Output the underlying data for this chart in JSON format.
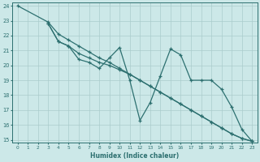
{
  "xlabel": "Humidex (Indice chaleur)",
  "xlim": [
    -0.5,
    23.5
  ],
  "ylim": [
    14.8,
    24.2
  ],
  "xticks": [
    0,
    1,
    2,
    3,
    4,
    5,
    6,
    7,
    8,
    9,
    10,
    11,
    12,
    13,
    14,
    15,
    16,
    17,
    18,
    19,
    20,
    21,
    22,
    23
  ],
  "yticks": [
    15,
    16,
    17,
    18,
    19,
    20,
    21,
    22,
    23,
    24
  ],
  "bg_color": "#cce8e8",
  "grid_color": "#aacccc",
  "line_color": "#2d7070",
  "series": [
    {
      "x": [
        0,
        3,
        4,
        5,
        6,
        7,
        8,
        9,
        10,
        11,
        12,
        13,
        14,
        15,
        16,
        17,
        18,
        19,
        20,
        21,
        22,
        23
      ],
      "y": [
        24,
        22.9,
        22.1,
        21.7,
        21.3,
        20.9,
        20.5,
        20.2,
        19.8,
        19.4,
        19.0,
        18.6,
        18.2,
        17.8,
        17.4,
        17.0,
        16.6,
        16.2,
        15.8,
        15.4,
        15.1,
        14.9
      ]
    },
    {
      "x": [
        3,
        4,
        5,
        6,
        7,
        8,
        9,
        10,
        11,
        12,
        13,
        14,
        15,
        16,
        17,
        18,
        19,
        20,
        21,
        22,
        23
      ],
      "y": [
        22.8,
        21.6,
        21.3,
        20.8,
        20.5,
        20.2,
        20.0,
        19.7,
        19.4,
        19.0,
        18.6,
        18.2,
        17.8,
        17.4,
        17.0,
        16.6,
        16.2,
        15.8,
        15.4,
        15.1,
        14.9
      ]
    },
    {
      "x": [
        3,
        4,
        5,
        6,
        7,
        8,
        9,
        10,
        11,
        12,
        13,
        14,
        15,
        16,
        17,
        18,
        19,
        20,
        21,
        22,
        23
      ],
      "y": [
        22.8,
        21.6,
        21.3,
        20.4,
        20.2,
        19.8,
        20.5,
        21.2,
        19.0,
        16.3,
        17.5,
        19.3,
        21.1,
        20.7,
        19.0,
        19.0,
        19.0,
        18.4,
        17.2,
        15.7,
        14.9
      ]
    }
  ]
}
